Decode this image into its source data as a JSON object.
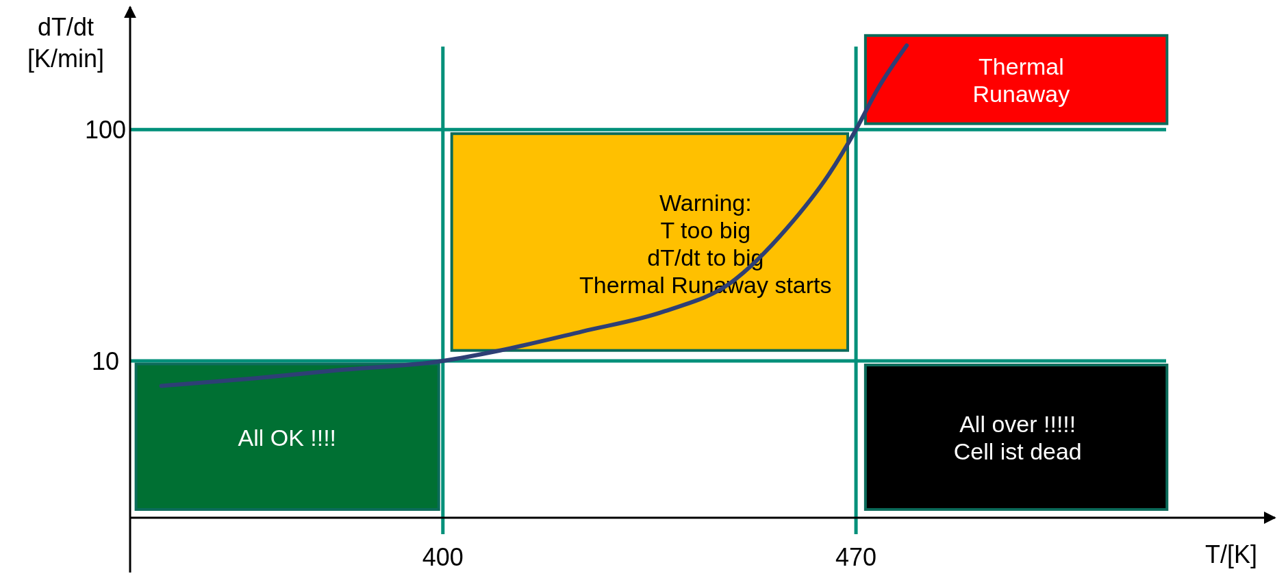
{
  "chart_data": {
    "type": "line",
    "xlabel": "T/[K]",
    "ylabel": "dT/dt\n[K/min]",
    "log": "y",
    "xlim": [
      347,
      541
    ],
    "ylim": [
      2.1,
      330
    ],
    "xticks": [
      400,
      470
    ],
    "yticks": [
      10,
      100
    ],
    "grid": false,
    "marker": "none",
    "line_style": "solid",
    "x": [
      352.3,
      368,
      381.9,
      400,
      409.7,
      423.6,
      437.6,
      448.7,
      458.4,
      465.4,
      470,
      473.7,
      478.6
    ],
    "series": [
      {
        "color": "#2e3f75",
        "values": [
          7.8,
          8.4,
          9.1,
          10,
          11.1,
          13.4,
          16.4,
          21.7,
          37.7,
          64,
          100,
          150,
          231
        ]
      }
    ],
    "ref_lines": [
      {
        "axis": "x",
        "value": 400,
        "color": "#00907a"
      },
      {
        "axis": "x",
        "value": 470,
        "color": "#00907a"
      },
      {
        "axis": "y",
        "value": 10,
        "color": "#00907a"
      },
      {
        "axis": "y",
        "value": 100,
        "color": "#00907a"
      }
    ],
    "annotations": [
      "All OK !!!!",
      "Warning:\nT too big\ndT/dt to big\nThermal Runaway starts",
      "Thermal\nRunaway",
      "All over !!!!!\nCell ist dead"
    ]
  }
}
